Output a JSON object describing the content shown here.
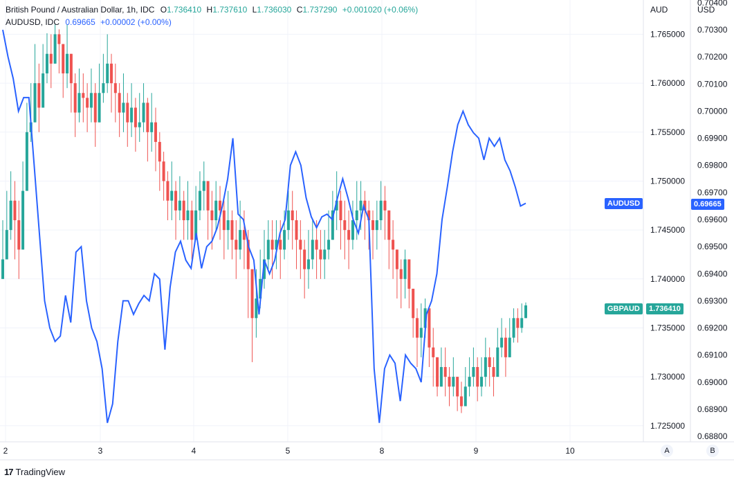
{
  "legend": {
    "gbpaud": {
      "title": "British Pound / Australian Dollar, 1h, IDC",
      "o_label": "O",
      "o": "1.736410",
      "h_label": "H",
      "h": "1.737610",
      "l_label": "L",
      "l": "1.736030",
      "c_label": "C",
      "c": "1.737290",
      "change": "+0.001020 (+0.06%)"
    },
    "audusd": {
      "title": "AUDUSD, IDC",
      "value": "0.69665",
      "change": "+0.00002 (+0.00%)"
    }
  },
  "axes": {
    "left_head": "AUD",
    "right_head": "USD",
    "aud_ticks": [
      "1.765000",
      "1.760000",
      "1.755000",
      "1.750000",
      "1.745000",
      "1.740000",
      "1.735000",
      "1.730000",
      "1.725000"
    ],
    "usd_ticks": [
      "0.70400",
      "0.70300",
      "0.70200",
      "0.70100",
      "0.70000",
      "0.69900",
      "0.69800",
      "0.69700",
      "0.69600",
      "0.69500",
      "0.69400",
      "0.69300",
      "0.69200",
      "0.69100",
      "0.69000",
      "0.68900",
      "0.68800"
    ],
    "x_ticks": [
      "2",
      "3",
      "4",
      "5",
      "8",
      "9",
      "10"
    ]
  },
  "tags": {
    "audusd_name": "AUDUSD",
    "audusd_value": "0.69665",
    "gbpaud_name": "GBPAUD",
    "gbpaud_value": "1.736410"
  },
  "buttons": {
    "auto": "A",
    "log": "B"
  },
  "brand": {
    "name": "TradingView",
    "mark": "17"
  },
  "colors": {
    "up": "#26a69a",
    "down": "#ef5350",
    "line": "#2962ff",
    "grid": "#f0f3fa"
  },
  "chart_data": {
    "type": "line",
    "title": "British Pound / Australian Dollar, 1h, IDC",
    "candles": {
      "name": "British Pound / Australian Dollar",
      "axis": "AUD",
      "step_hours": 1,
      "close": [
        1.742,
        1.745,
        1.748,
        1.746,
        1.743,
        1.749,
        1.755,
        1.756,
        1.76,
        1.7575,
        1.761,
        1.763,
        1.762,
        1.765,
        1.764,
        1.761,
        1.763,
        1.76,
        1.757,
        1.759,
        1.7585,
        1.7575,
        1.759,
        1.756,
        1.759,
        1.76,
        1.762,
        1.76,
        1.759,
        1.757,
        1.758,
        1.756,
        1.7575,
        1.7555,
        1.756,
        1.758,
        1.755,
        1.756,
        1.754,
        1.752,
        1.75,
        1.748,
        1.749,
        1.747,
        1.748,
        1.746,
        1.747,
        1.744,
        1.747,
        1.749,
        1.75,
        1.747,
        1.746,
        1.748,
        1.747,
        1.745,
        1.746,
        1.744,
        1.743,
        1.745,
        1.744,
        1.741,
        1.736,
        1.738,
        1.74,
        1.742,
        1.744,
        1.743,
        1.744,
        1.743,
        1.745,
        1.747,
        1.746,
        1.744,
        1.743,
        1.741,
        1.742,
        1.744,
        1.743,
        1.742,
        1.743,
        1.744,
        1.747,
        1.748,
        1.746,
        1.745,
        1.744,
        1.746,
        1.747,
        1.748,
        1.747,
        1.746,
        1.745,
        1.746,
        1.748,
        1.747,
        1.744,
        1.743,
        1.741,
        1.74,
        1.742,
        1.739,
        1.736,
        1.734,
        1.735,
        1.737,
        1.733,
        1.732,
        1.729,
        1.731,
        1.73,
        1.729,
        1.73,
        1.728,
        1.727,
        1.729,
        1.73,
        1.731,
        1.729,
        1.73,
        1.732,
        1.731,
        1.73,
        1.733,
        1.734,
        1.732,
        1.734,
        1.736,
        1.735,
        1.736,
        1.7373
      ],
      "high": [
        1.746,
        1.749,
        1.751,
        1.75,
        1.748,
        1.752,
        1.758,
        1.76,
        1.764,
        1.762,
        1.764,
        1.7651,
        1.765,
        1.766,
        1.7655,
        1.764,
        1.766,
        1.763,
        1.761,
        1.7615,
        1.761,
        1.76,
        1.7615,
        1.76,
        1.762,
        1.763,
        1.765,
        1.763,
        1.762,
        1.76,
        1.761,
        1.759,
        1.76,
        1.7585,
        1.759,
        1.76,
        1.7585,
        1.759,
        1.7575,
        1.755,
        1.753,
        1.751,
        1.752,
        1.75,
        1.7505,
        1.749,
        1.75,
        1.748,
        1.7495,
        1.751,
        1.752,
        1.75,
        1.749,
        1.75,
        1.7495,
        1.748,
        1.749,
        1.747,
        1.746,
        1.748,
        1.747,
        1.745,
        1.74,
        1.741,
        1.743,
        1.745,
        1.746,
        1.746,
        1.746,
        1.746,
        1.747,
        1.749,
        1.749,
        1.747,
        1.746,
        1.744,
        1.745,
        1.746,
        1.746,
        1.745,
        1.745,
        1.747,
        1.749,
        1.751,
        1.749,
        1.748,
        1.747,
        1.748,
        1.75,
        1.75,
        1.749,
        1.748,
        1.747,
        1.748,
        1.75,
        1.7495,
        1.747,
        1.746,
        1.743,
        1.742,
        1.743,
        1.742,
        1.739,
        1.737,
        1.7375,
        1.738,
        1.736,
        1.735,
        1.732,
        1.733,
        1.733,
        1.731,
        1.732,
        1.73,
        1.7295,
        1.731,
        1.732,
        1.733,
        1.732,
        1.732,
        1.734,
        1.733,
        1.732,
        1.735,
        1.736,
        1.735,
        1.736,
        1.737,
        1.737,
        1.7375,
        1.7376
      ],
      "low": [
        1.74,
        1.743,
        1.744,
        1.742,
        1.74,
        1.745,
        1.751,
        1.754,
        1.756,
        1.755,
        1.758,
        1.76,
        1.7595,
        1.762,
        1.761,
        1.7585,
        1.7595,
        1.757,
        1.7545,
        1.756,
        1.756,
        1.755,
        1.756,
        1.7535,
        1.756,
        1.758,
        1.759,
        1.757,
        1.756,
        1.7545,
        1.755,
        1.7535,
        1.7545,
        1.753,
        1.754,
        1.755,
        1.752,
        1.753,
        1.751,
        1.749,
        1.748,
        1.746,
        1.746,
        1.744,
        1.746,
        1.744,
        1.744,
        1.742,
        1.744,
        1.746,
        1.747,
        1.744,
        1.743,
        1.745,
        1.744,
        1.742,
        1.743,
        1.742,
        1.74,
        1.742,
        1.741,
        1.736,
        1.7315,
        1.734,
        1.737,
        1.739,
        1.741,
        1.74,
        1.741,
        1.74,
        1.742,
        1.744,
        1.743,
        1.741,
        1.74,
        1.738,
        1.739,
        1.741,
        1.74,
        1.74,
        1.74,
        1.742,
        1.744,
        1.745,
        1.743,
        1.742,
        1.741,
        1.743,
        1.744,
        1.745,
        1.744,
        1.743,
        1.742,
        1.743,
        1.745,
        1.744,
        1.741,
        1.74,
        1.738,
        1.737,
        1.738,
        1.737,
        1.734,
        1.731,
        1.732,
        1.734,
        1.731,
        1.729,
        1.728,
        1.729,
        1.728,
        1.727,
        1.728,
        1.7265,
        1.7263,
        1.727,
        1.728,
        1.729,
        1.7275,
        1.728,
        1.729,
        1.729,
        1.728,
        1.731,
        1.732,
        1.73,
        1.732,
        1.7335,
        1.7335,
        1.7345,
        1.736
      ]
    },
    "line": {
      "name": "AUDUSD",
      "axis": "USD",
      "values": [
        0.703,
        0.702,
        0.7012,
        0.7,
        0.7005,
        0.7005,
        0.698,
        0.6955,
        0.693,
        0.692,
        0.6915,
        0.6917,
        0.6932,
        0.6922,
        0.6948,
        0.695,
        0.693,
        0.692,
        0.6915,
        0.6905,
        0.6885,
        0.6892,
        0.6915,
        0.693,
        0.693,
        0.6925,
        0.6929,
        0.6932,
        0.693,
        0.694,
        0.6938,
        0.6912,
        0.6935,
        0.6948,
        0.6952,
        0.6945,
        0.6942,
        0.6955,
        0.6942,
        0.695,
        0.6952,
        0.6957,
        0.6965,
        0.6975,
        0.699,
        0.6962,
        0.696,
        0.695,
        0.6945,
        0.6925,
        0.6945,
        0.694,
        0.6945,
        0.6955,
        0.696,
        0.698,
        0.6985,
        0.698,
        0.6968,
        0.6961,
        0.6957,
        0.6961,
        0.6962,
        0.696,
        0.6968,
        0.6975,
        0.6968,
        0.696,
        0.6955,
        0.6965,
        0.696,
        0.6905,
        0.6885,
        0.6905,
        0.691,
        0.6907,
        0.6893,
        0.691,
        0.6907,
        0.6905,
        0.69,
        0.6925,
        0.693,
        0.694,
        0.696,
        0.6972,
        0.6985,
        0.6995,
        0.7,
        0.6995,
        0.6992,
        0.699,
        0.6982,
        0.699,
        0.6987,
        0.699,
        0.6982,
        0.6978,
        0.6972,
        0.6965,
        0.6966
      ],
      "x_positions_hours": "even"
    },
    "x_ticks": [
      "2",
      "3",
      "4",
      "5",
      "8",
      "9",
      "10"
    ],
    "ylim_aud": [
      1.7235,
      1.7685
    ],
    "ylim_usd": [
      0.68785,
      0.7041
    ],
    "grid": true
  }
}
